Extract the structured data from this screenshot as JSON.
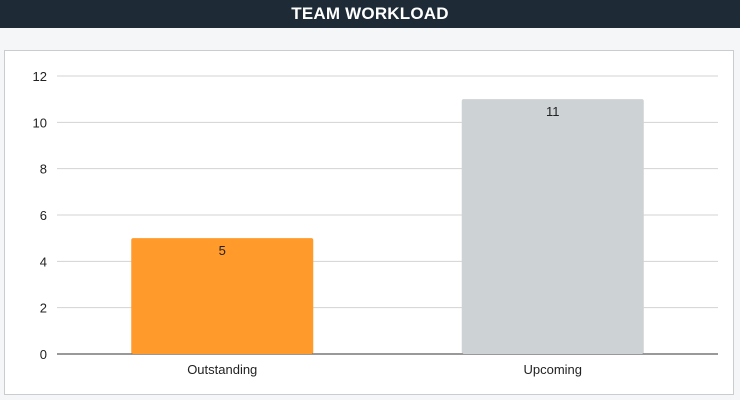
{
  "header": {
    "title": "TEAM WORKLOAD"
  },
  "chart_data": {
    "type": "bar",
    "title": "TEAM WORKLOAD",
    "categories": [
      "Outstanding",
      "Upcoming"
    ],
    "values": [
      5,
      11
    ],
    "colors": [
      "#ff9a2b",
      "#cdd2d4"
    ],
    "ylim": [
      0,
      12
    ],
    "yticks": [
      0,
      2,
      4,
      6,
      8,
      10,
      12
    ],
    "grid": true,
    "legend": "none",
    "data_labels": true
  }
}
